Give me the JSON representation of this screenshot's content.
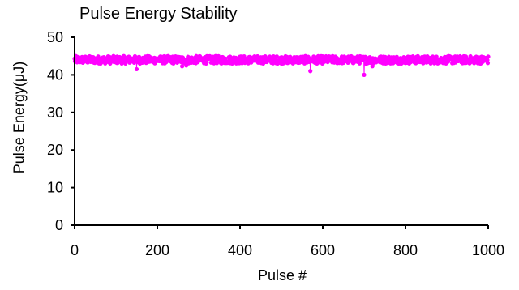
{
  "chart_data": {
    "type": "scatter",
    "title": "Pulse Energy Stability",
    "xlabel": "Pulse #",
    "ylabel": "Pulse Energy(μJ)",
    "xlim": [
      0,
      1000
    ],
    "ylim": [
      0,
      50
    ],
    "x_ticks": [
      0,
      200,
      400,
      600,
      800,
      1000
    ],
    "y_ticks": [
      0,
      10,
      20,
      30,
      40,
      50
    ],
    "grid": false,
    "series": [
      {
        "color": "#ff00ff",
        "marker": "circle",
        "connected": true,
        "mean": 44.0,
        "band": [
          43.0,
          45.0
        ],
        "n_points": 1000,
        "outliers": [
          {
            "x": 150,
            "y": 41.5
          },
          {
            "x": 260,
            "y": 42.3
          },
          {
            "x": 270,
            "y": 42.5
          },
          {
            "x": 570,
            "y": 41.0
          },
          {
            "x": 700,
            "y": 40.0
          },
          {
            "x": 720,
            "y": 42.3
          }
        ]
      }
    ]
  }
}
